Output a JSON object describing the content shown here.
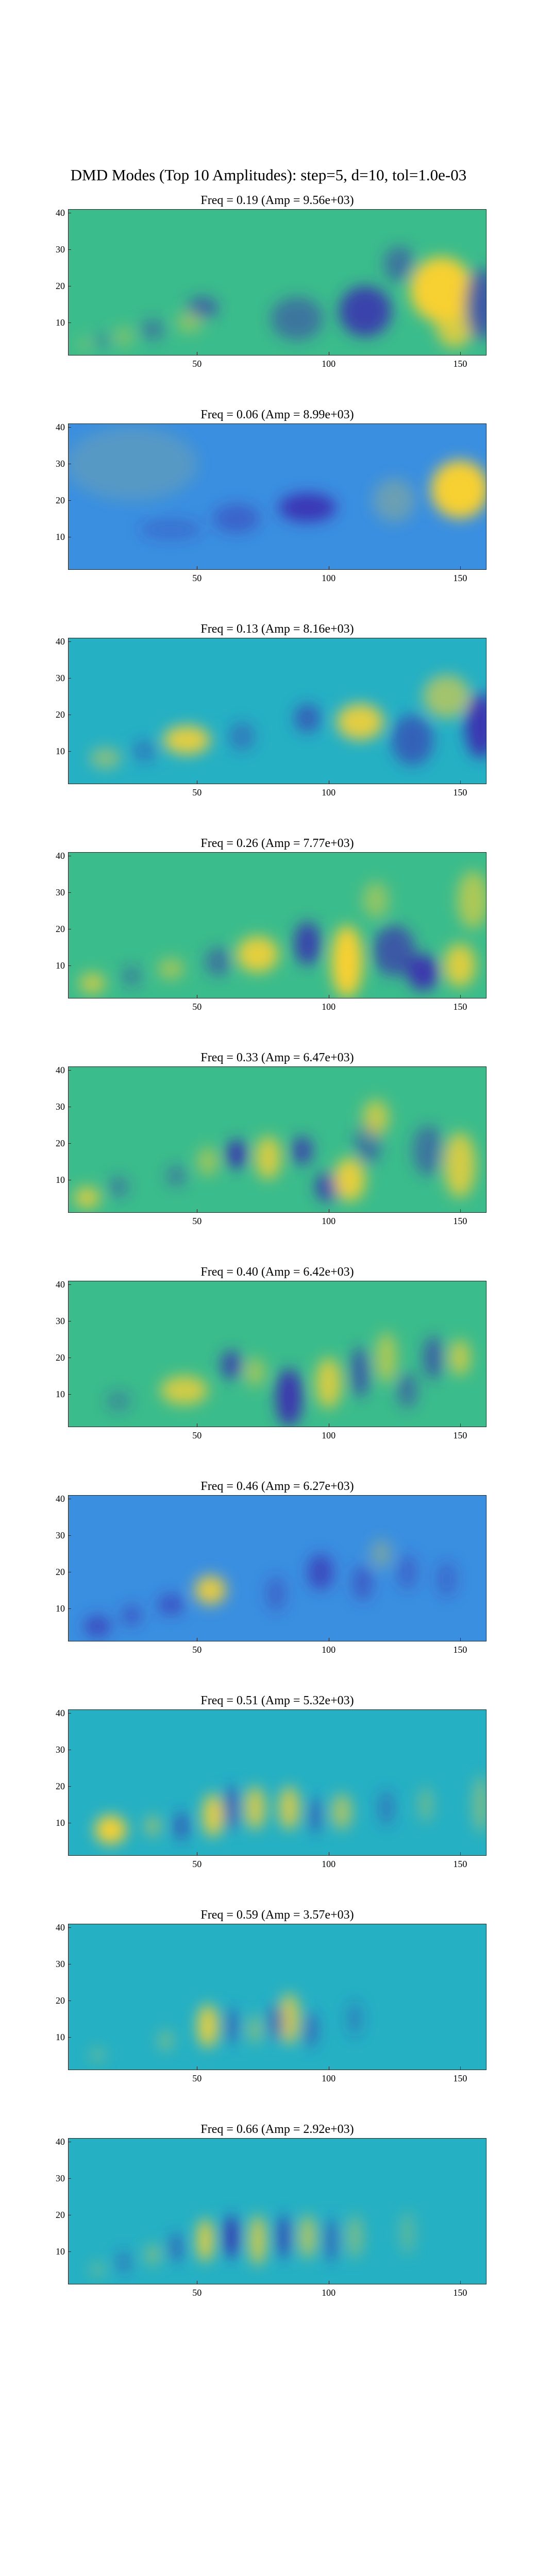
{
  "figure_title": "DMD Modes (Top 10 Amplitudes): step=5, d=10, tol=1.0e-03",
  "colors": {
    "background_mode_green": "#3bbc8c",
    "background_mode_blue": "#3a8fe0",
    "positive": "#f7d033",
    "negative": "#3b2fb0",
    "mid": "#25b0c4"
  },
  "chart_data": [
    {
      "type": "heatmap",
      "title": "Freq = 0.19 (Amp = 9.56e+03)",
      "xlim": [
        1,
        160
      ],
      "ylim": [
        1,
        41
      ],
      "x_ticks": [
        "50",
        "100",
        "150"
      ],
      "y_ticks": [
        "10",
        "20",
        "30",
        "40"
      ],
      "grid": false,
      "background": "#3bbc8c",
      "features": [
        {
          "x": 143,
          "y": 19,
          "rx": 12,
          "ry": 9,
          "sign": 1,
          "strength": 1.0
        },
        {
          "x": 148,
          "y": 9,
          "rx": 7,
          "ry": 6,
          "sign": 1,
          "strength": 0.8
        },
        {
          "x": 114,
          "y": 13,
          "rx": 10,
          "ry": 7,
          "sign": -1,
          "strength": 0.85
        },
        {
          "x": 158,
          "y": 15,
          "rx": 6,
          "ry": 10,
          "sign": -1,
          "strength": 0.7
        },
        {
          "x": 127,
          "y": 26,
          "rx": 6,
          "ry": 5,
          "sign": -1,
          "strength": 0.5
        },
        {
          "x": 88,
          "y": 11,
          "rx": 10,
          "ry": 6,
          "sign": -1,
          "strength": 0.5
        },
        {
          "x": 52,
          "y": 14,
          "rx": 6,
          "ry": 3,
          "sign": -1,
          "strength": 0.6
        },
        {
          "x": 47,
          "y": 10,
          "rx": 5,
          "ry": 3,
          "sign": 1,
          "strength": 0.4
        },
        {
          "x": 33,
          "y": 8,
          "rx": 5,
          "ry": 3,
          "sign": -1,
          "strength": 0.4
        },
        {
          "x": 22,
          "y": 6,
          "rx": 4,
          "ry": 3,
          "sign": 1,
          "strength": 0.3
        },
        {
          "x": 14,
          "y": 5,
          "rx": 4,
          "ry": 2,
          "sign": -1,
          "strength": 0.3
        },
        {
          "x": 7,
          "y": 4,
          "rx": 3,
          "ry": 2,
          "sign": 1,
          "strength": 0.25
        }
      ]
    },
    {
      "type": "heatmap",
      "title": "Freq = 0.06 (Amp = 8.99e+03)",
      "xlim": [
        1,
        160
      ],
      "ylim": [
        1,
        41
      ],
      "x_ticks": [
        "50",
        "100",
        "150"
      ],
      "y_ticks": [
        "10",
        "20",
        "30",
        "40"
      ],
      "grid": false,
      "background": "#3a8fe0",
      "features": [
        {
          "x": 150,
          "y": 23,
          "rx": 11,
          "ry": 8,
          "sign": 1,
          "strength": 1.0
        },
        {
          "x": 125,
          "y": 20,
          "rx": 8,
          "ry": 6,
          "sign": 1,
          "strength": 0.25
        },
        {
          "x": 92,
          "y": 18,
          "rx": 11,
          "ry": 4,
          "sign": -1,
          "strength": 0.9
        },
        {
          "x": 65,
          "y": 15,
          "rx": 9,
          "ry": 4,
          "sign": -1,
          "strength": 0.45
        },
        {
          "x": 40,
          "y": 12,
          "rx": 12,
          "ry": 3,
          "sign": -1,
          "strength": 0.3
        },
        {
          "x": 25,
          "y": 30,
          "rx": 25,
          "ry": 10,
          "sign": 1,
          "strength": 0.15
        }
      ]
    },
    {
      "type": "heatmap",
      "title": "Freq = 0.13 (Amp = 8.16e+03)",
      "xlim": [
        1,
        160
      ],
      "ylim": [
        1,
        41
      ],
      "x_ticks": [
        "50",
        "100",
        "150"
      ],
      "y_ticks": [
        "10",
        "20",
        "30",
        "40"
      ],
      "grid": false,
      "background": "#25b0c4",
      "features": [
        {
          "x": 46,
          "y": 13,
          "rx": 9,
          "ry": 4,
          "sign": 1,
          "strength": 0.9
        },
        {
          "x": 112,
          "y": 18,
          "rx": 9,
          "ry": 5,
          "sign": 1,
          "strength": 0.9
        },
        {
          "x": 145,
          "y": 25,
          "rx": 9,
          "ry": 6,
          "sign": 1,
          "strength": 0.6
        },
        {
          "x": 158,
          "y": 17,
          "rx": 6,
          "ry": 9,
          "sign": -1,
          "strength": 0.95
        },
        {
          "x": 92,
          "y": 19,
          "rx": 5,
          "ry": 4,
          "sign": -1,
          "strength": 0.6
        },
        {
          "x": 132,
          "y": 13,
          "rx": 8,
          "ry": 7,
          "sign": -1,
          "strength": 0.6
        },
        {
          "x": 67,
          "y": 14,
          "rx": 5,
          "ry": 4,
          "sign": -1,
          "strength": 0.4
        },
        {
          "x": 15,
          "y": 8,
          "rx": 6,
          "ry": 3,
          "sign": 1,
          "strength": 0.45
        },
        {
          "x": 30,
          "y": 10,
          "rx": 5,
          "ry": 3,
          "sign": -1,
          "strength": 0.35
        }
      ]
    },
    {
      "type": "heatmap",
      "title": "Freq = 0.26 (Amp = 7.77e+03)",
      "xlim": [
        1,
        160
      ],
      "ylim": [
        1,
        41
      ],
      "x_ticks": [
        "50",
        "100",
        "150"
      ],
      "y_ticks": [
        "10",
        "20",
        "30",
        "40"
      ],
      "grid": false,
      "background": "#3bbc8c",
      "features": [
        {
          "x": 73,
          "y": 13,
          "rx": 8,
          "ry": 5,
          "sign": 1,
          "strength": 0.9
        },
        {
          "x": 107,
          "y": 11,
          "rx": 6,
          "ry": 10,
          "sign": 1,
          "strength": 1.0
        },
        {
          "x": 150,
          "y": 10,
          "rx": 6,
          "ry": 6,
          "sign": 1,
          "strength": 0.85
        },
        {
          "x": 155,
          "y": 28,
          "rx": 6,
          "ry": 8,
          "sign": 1,
          "strength": 0.6
        },
        {
          "x": 92,
          "y": 16,
          "rx": 5,
          "ry": 6,
          "sign": -1,
          "strength": 0.85
        },
        {
          "x": 125,
          "y": 14,
          "rx": 8,
          "ry": 7,
          "sign": -1,
          "strength": 0.7
        },
        {
          "x": 136,
          "y": 8,
          "rx": 6,
          "ry": 5,
          "sign": -1,
          "strength": 0.95
        },
        {
          "x": 58,
          "y": 11,
          "rx": 5,
          "ry": 4,
          "sign": -1,
          "strength": 0.5
        },
        {
          "x": 40,
          "y": 9,
          "rx": 5,
          "ry": 3,
          "sign": 1,
          "strength": 0.5
        },
        {
          "x": 25,
          "y": 7,
          "rx": 4,
          "ry": 3,
          "sign": -1,
          "strength": 0.35
        },
        {
          "x": 10,
          "y": 5,
          "rx": 5,
          "ry": 3,
          "sign": 1,
          "strength": 0.7
        },
        {
          "x": 118,
          "y": 28,
          "rx": 5,
          "ry": 5,
          "sign": 1,
          "strength": 0.45
        }
      ]
    },
    {
      "type": "heatmap",
      "title": "Freq = 0.33 (Amp = 6.47e+03)",
      "xlim": [
        1,
        160
      ],
      "ylim": [
        1,
        41
      ],
      "x_ticks": [
        "50",
        "100",
        "150"
      ],
      "y_ticks": [
        "10",
        "20",
        "30",
        "40"
      ],
      "grid": false,
      "background": "#3bbc8c",
      "features": [
        {
          "x": 65,
          "y": 17,
          "rx": 4,
          "ry": 4,
          "sign": -1,
          "strength": 0.9
        },
        {
          "x": 90,
          "y": 18,
          "rx": 4,
          "ry": 4,
          "sign": -1,
          "strength": 0.8
        },
        {
          "x": 100,
          "y": 8,
          "rx": 5,
          "ry": 4,
          "sign": -1,
          "strength": 0.85
        },
        {
          "x": 115,
          "y": 20,
          "rx": 5,
          "ry": 6,
          "sign": -1,
          "strength": 0.5
        },
        {
          "x": 138,
          "y": 18,
          "rx": 6,
          "ry": 7,
          "sign": -1,
          "strength": 0.5
        },
        {
          "x": 77,
          "y": 16,
          "rx": 5,
          "ry": 6,
          "sign": 1,
          "strength": 0.8
        },
        {
          "x": 108,
          "y": 10,
          "rx": 6,
          "ry": 6,
          "sign": 1,
          "strength": 0.9
        },
        {
          "x": 118,
          "y": 27,
          "rx": 5,
          "ry": 5,
          "sign": 1,
          "strength": 0.7
        },
        {
          "x": 150,
          "y": 14,
          "rx": 6,
          "ry": 9,
          "sign": 1,
          "strength": 0.8
        },
        {
          "x": 54,
          "y": 15,
          "rx": 4,
          "ry": 4,
          "sign": 1,
          "strength": 0.5
        },
        {
          "x": 42,
          "y": 11,
          "rx": 4,
          "ry": 3,
          "sign": -1,
          "strength": 0.4
        },
        {
          "x": 8,
          "y": 5,
          "rx": 5,
          "ry": 3,
          "sign": 1,
          "strength": 0.8
        },
        {
          "x": 20,
          "y": 8,
          "rx": 4,
          "ry": 3,
          "sign": -1,
          "strength": 0.4
        }
      ]
    },
    {
      "type": "heatmap",
      "title": "Freq = 0.40 (Amp = 6.42e+03)",
      "xlim": [
        1,
        160
      ],
      "ylim": [
        1,
        41
      ],
      "x_ticks": [
        "50",
        "100",
        "150"
      ],
      "y_ticks": [
        "10",
        "20",
        "30",
        "40"
      ],
      "grid": false,
      "background": "#3bbc8c",
      "features": [
        {
          "x": 45,
          "y": 11,
          "rx": 9,
          "ry": 4,
          "sign": 1,
          "strength": 0.8
        },
        {
          "x": 85,
          "y": 9,
          "rx": 5,
          "ry": 8,
          "sign": -1,
          "strength": 0.95
        },
        {
          "x": 100,
          "y": 13,
          "rx": 5,
          "ry": 7,
          "sign": 1,
          "strength": 0.8
        },
        {
          "x": 112,
          "y": 16,
          "rx": 4,
          "ry": 7,
          "sign": -1,
          "strength": 0.6
        },
        {
          "x": 122,
          "y": 20,
          "rx": 4,
          "ry": 7,
          "sign": 1,
          "strength": 0.6
        },
        {
          "x": 63,
          "y": 18,
          "rx": 4,
          "ry": 4,
          "sign": -1,
          "strength": 0.8
        },
        {
          "x": 72,
          "y": 16,
          "rx": 4,
          "ry": 4,
          "sign": 1,
          "strength": 0.5
        },
        {
          "x": 140,
          "y": 20,
          "rx": 4,
          "ry": 6,
          "sign": -1,
          "strength": 0.6
        },
        {
          "x": 150,
          "y": 20,
          "rx": 4,
          "ry": 5,
          "sign": 1,
          "strength": 0.7
        },
        {
          "x": 130,
          "y": 11,
          "rx": 4,
          "ry": 5,
          "sign": -1,
          "strength": 0.5
        },
        {
          "x": 20,
          "y": 8,
          "rx": 5,
          "ry": 3,
          "sign": -1,
          "strength": 0.3
        }
      ]
    },
    {
      "type": "heatmap",
      "title": "Freq = 0.46 (Amp = 6.27e+03)",
      "xlim": [
        1,
        160
      ],
      "ylim": [
        1,
        41
      ],
      "x_ticks": [
        "50",
        "100",
        "150"
      ],
      "y_ticks": [
        "10",
        "20",
        "30",
        "40"
      ],
      "grid": false,
      "background": "#3a8fe0",
      "features": [
        {
          "x": 55,
          "y": 15,
          "rx": 6,
          "ry": 4,
          "sign": 1,
          "strength": 0.9
        },
        {
          "x": 40,
          "y": 11,
          "rx": 5,
          "ry": 3,
          "sign": -1,
          "strength": 0.6
        },
        {
          "x": 25,
          "y": 8,
          "rx": 4,
          "ry": 3,
          "sign": -1,
          "strength": 0.5
        },
        {
          "x": 12,
          "y": 5,
          "rx": 5,
          "ry": 3,
          "sign": -1,
          "strength": 0.7
        },
        {
          "x": 97,
          "y": 20,
          "rx": 5,
          "ry": 5,
          "sign": -1,
          "strength": 0.7
        },
        {
          "x": 113,
          "y": 17,
          "rx": 4,
          "ry": 5,
          "sign": -1,
          "strength": 0.5
        },
        {
          "x": 80,
          "y": 14,
          "rx": 4,
          "ry": 5,
          "sign": -1,
          "strength": 0.4
        },
        {
          "x": 130,
          "y": 20,
          "rx": 4,
          "ry": 5,
          "sign": -1,
          "strength": 0.4
        },
        {
          "x": 145,
          "y": 18,
          "rx": 4,
          "ry": 5,
          "sign": -1,
          "strength": 0.35
        },
        {
          "x": 120,
          "y": 25,
          "rx": 4,
          "ry": 4,
          "sign": 1,
          "strength": 0.3
        }
      ]
    },
    {
      "type": "heatmap",
      "title": "Freq = 0.51 (Amp = 5.32e+03)",
      "xlim": [
        1,
        160
      ],
      "ylim": [
        1,
        41
      ],
      "x_ticks": [
        "50",
        "100",
        "150"
      ],
      "y_ticks": [
        "10",
        "20",
        "30",
        "40"
      ],
      "grid": false,
      "background": "#25b0c4",
      "features": [
        {
          "x": 17,
          "y": 8,
          "rx": 6,
          "ry": 4,
          "sign": 1,
          "strength": 1.0
        },
        {
          "x": 33,
          "y": 9,
          "rx": 3,
          "ry": 3,
          "sign": 1,
          "strength": 0.5
        },
        {
          "x": 44,
          "y": 9,
          "rx": 3,
          "ry": 4,
          "sign": -1,
          "strength": 0.6
        },
        {
          "x": 56,
          "y": 12,
          "rx": 4,
          "ry": 6,
          "sign": 1,
          "strength": 0.9
        },
        {
          "x": 63,
          "y": 14,
          "rx": 3,
          "ry": 6,
          "sign": -1,
          "strength": 0.7
        },
        {
          "x": 72,
          "y": 14,
          "rx": 4,
          "ry": 6,
          "sign": 1,
          "strength": 0.8
        },
        {
          "x": 85,
          "y": 14,
          "rx": 4,
          "ry": 6,
          "sign": 1,
          "strength": 0.8
        },
        {
          "x": 95,
          "y": 12,
          "rx": 3,
          "ry": 5,
          "sign": -1,
          "strength": 0.5
        },
        {
          "x": 105,
          "y": 13,
          "rx": 4,
          "ry": 5,
          "sign": 1,
          "strength": 0.6
        },
        {
          "x": 122,
          "y": 14,
          "rx": 3,
          "ry": 5,
          "sign": -1,
          "strength": 0.4
        },
        {
          "x": 137,
          "y": 15,
          "rx": 3,
          "ry": 5,
          "sign": 1,
          "strength": 0.3
        },
        {
          "x": 158,
          "y": 15,
          "rx": 3,
          "ry": 8,
          "sign": 1,
          "strength": 0.4
        }
      ]
    },
    {
      "type": "heatmap",
      "title": "Freq = 0.59 (Amp = 3.57e+03)",
      "xlim": [
        1,
        160
      ],
      "ylim": [
        1,
        41
      ],
      "x_ticks": [
        "50",
        "100",
        "150"
      ],
      "y_ticks": [
        "10",
        "20",
        "30",
        "40"
      ],
      "grid": false,
      "background": "#25b0c4",
      "features": [
        {
          "x": 54,
          "y": 13,
          "rx": 4,
          "ry": 6,
          "sign": 1,
          "strength": 0.9
        },
        {
          "x": 63,
          "y": 13,
          "rx": 3,
          "ry": 5,
          "sign": -1,
          "strength": 0.5
        },
        {
          "x": 85,
          "y": 15,
          "rx": 4,
          "ry": 7,
          "sign": 1,
          "strength": 0.8
        },
        {
          "x": 80,
          "y": 14,
          "rx": 3,
          "ry": 5,
          "sign": -1,
          "strength": 0.6
        },
        {
          "x": 93,
          "y": 12,
          "rx": 3,
          "ry": 5,
          "sign": -1,
          "strength": 0.5
        },
        {
          "x": 72,
          "y": 12,
          "rx": 3,
          "ry": 4,
          "sign": 1,
          "strength": 0.4
        },
        {
          "x": 38,
          "y": 9,
          "rx": 3,
          "ry": 3,
          "sign": 1,
          "strength": 0.35
        },
        {
          "x": 12,
          "y": 5,
          "rx": 3,
          "ry": 2,
          "sign": 1,
          "strength": 0.3
        },
        {
          "x": 110,
          "y": 15,
          "rx": 3,
          "ry": 5,
          "sign": -1,
          "strength": 0.3
        }
      ]
    },
    {
      "type": "heatmap",
      "title": "Freq = 0.66 (Amp = 2.92e+03)",
      "xlim": [
        1,
        160
      ],
      "ylim": [
        1,
        41
      ],
      "x_ticks": [
        "50",
        "100",
        "150"
      ],
      "y_ticks": [
        "10",
        "20",
        "30",
        "40"
      ],
      "grid": false,
      "background": "#25b0c4",
      "features": [
        {
          "x": 53,
          "y": 13,
          "rx": 3,
          "ry": 6,
          "sign": 1,
          "strength": 0.95
        },
        {
          "x": 63,
          "y": 14,
          "rx": 3,
          "ry": 6,
          "sign": -1,
          "strength": 0.9
        },
        {
          "x": 73,
          "y": 13,
          "rx": 3,
          "ry": 7,
          "sign": 1,
          "strength": 0.85
        },
        {
          "x": 83,
          "y": 14,
          "rx": 3,
          "ry": 6,
          "sign": -1,
          "strength": 0.7
        },
        {
          "x": 92,
          "y": 14,
          "rx": 3,
          "ry": 6,
          "sign": 1,
          "strength": 0.7
        },
        {
          "x": 101,
          "y": 13,
          "rx": 3,
          "ry": 6,
          "sign": -1,
          "strength": 0.5
        },
        {
          "x": 110,
          "y": 14,
          "rx": 3,
          "ry": 6,
          "sign": 1,
          "strength": 0.4
        },
        {
          "x": 42,
          "y": 11,
          "rx": 3,
          "ry": 4,
          "sign": -1,
          "strength": 0.5
        },
        {
          "x": 33,
          "y": 9,
          "rx": 3,
          "ry": 3,
          "sign": 1,
          "strength": 0.4
        },
        {
          "x": 22,
          "y": 7,
          "rx": 3,
          "ry": 3,
          "sign": -1,
          "strength": 0.4
        },
        {
          "x": 12,
          "y": 5,
          "rx": 3,
          "ry": 2,
          "sign": 1,
          "strength": 0.3
        },
        {
          "x": 130,
          "y": 15,
          "rx": 3,
          "ry": 6,
          "sign": 1,
          "strength": 0.25
        }
      ]
    }
  ]
}
